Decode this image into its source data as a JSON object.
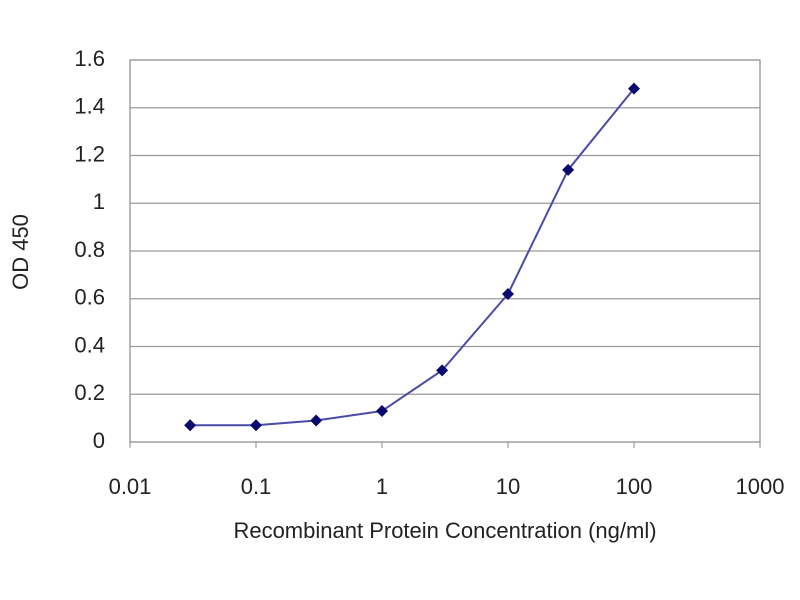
{
  "chart_data": {
    "type": "line",
    "xlabel": "Recombinant Protein Concentration (ng/ml)",
    "ylabel": "OD 450",
    "x": [
      0.03,
      0.1,
      0.3,
      1,
      3,
      10,
      30,
      100
    ],
    "series": [
      {
        "color": "#4a4aa8",
        "marker_color": "#0a0a6e",
        "values": [
          0.07,
          0.07,
          0.09,
          0.13,
          0.3,
          0.62,
          1.14,
          1.48
        ]
      }
    ],
    "xscale": "log",
    "xlim": [
      0.01,
      1000
    ],
    "xticks": [
      0.01,
      0.1,
      1,
      10,
      100,
      1000
    ],
    "ylim": [
      0,
      1.6
    ],
    "yticks": [
      0,
      0.2,
      0.4,
      0.6,
      0.8,
      1,
      1.2,
      1.4,
      1.6
    ],
    "grid": true
  }
}
